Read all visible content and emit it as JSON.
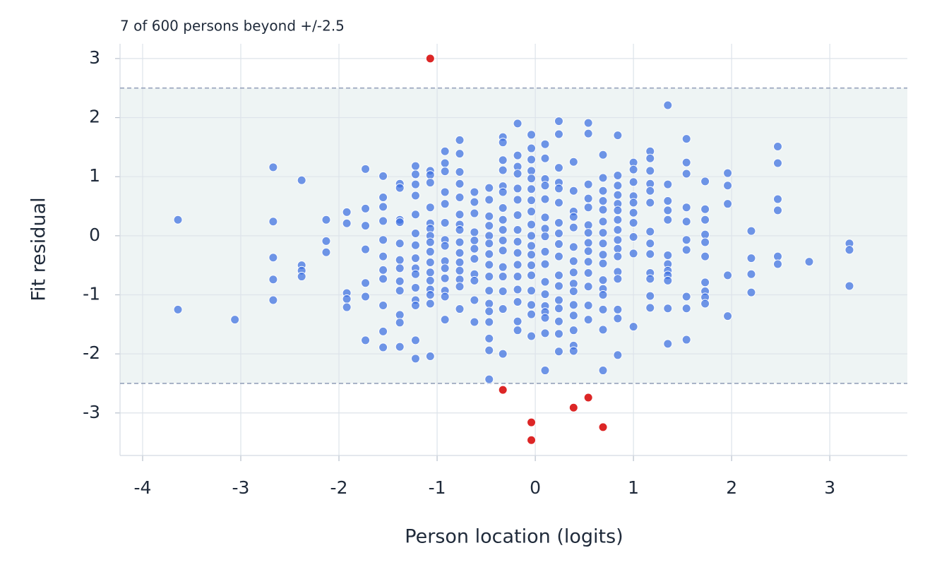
{
  "chart_data": {
    "type": "scatter",
    "annotation": "7 of 600 persons beyond +/-2.5",
    "x_label": "Person location (logits)",
    "y_label": "Fit residual",
    "xlim": [
      -4.23,
      3.79
    ],
    "ylim": [
      -3.72,
      3.25
    ],
    "xticks": [
      -4,
      -3,
      -2,
      -1,
      0,
      1,
      2,
      3
    ],
    "yticks": [
      -3,
      -2,
      -1,
      0,
      1,
      2,
      3
    ],
    "thresholds": [
      -2.5,
      2.5
    ],
    "grid": true,
    "series": [
      {
        "color": "#3b6fe0",
        "x": [
          -3.64,
          -3.64,
          -3.06,
          -2.67,
          -2.67,
          -2.67,
          -2.67,
          -2.67,
          -2.38,
          -2.38,
          -2.38,
          -2.38,
          -2.13,
          -2.13,
          -2.13,
          -1.92,
          -1.92,
          -1.92,
          -1.92,
          -1.92,
          -1.73,
          -1.73,
          -1.73,
          -1.73,
          -1.73,
          -1.73,
          -1.73,
          -1.55,
          -1.55,
          -1.55,
          -1.55,
          -1.55,
          -1.55,
          -1.55,
          -1.55,
          -1.55,
          -1.55,
          -1.55,
          -1.38,
          -1.38,
          -1.38,
          -1.38,
          -1.38,
          -1.38,
          -1.38,
          -1.38,
          -1.38,
          -1.38,
          -1.38,
          -1.38,
          -1.22,
          -1.22,
          -1.22,
          -1.22,
          -1.22,
          -1.22,
          -1.22,
          -1.22,
          -1.22,
          -1.22,
          -1.22,
          -1.22,
          -1.22,
          -1.22,
          -1.22,
          -1.07,
          -1.07,
          -1.07,
          -1.07,
          -1.07,
          -1.07,
          -1.07,
          -1.07,
          -1.07,
          -1.07,
          -1.07,
          -1.07,
          -1.07,
          -1.07,
          -1.07,
          -1.07,
          -0.92,
          -0.92,
          -0.92,
          -0.92,
          -0.92,
          -0.92,
          -0.92,
          -0.92,
          -0.92,
          -0.92,
          -0.92,
          -0.92,
          -0.92,
          -0.92,
          -0.77,
          -0.77,
          -0.77,
          -0.77,
          -0.77,
          -0.77,
          -0.77,
          -0.77,
          -0.77,
          -0.77,
          -0.77,
          -0.77,
          -0.77,
          -0.77,
          -0.77,
          -0.62,
          -0.62,
          -0.62,
          -0.62,
          -0.62,
          -0.62,
          -0.62,
          -0.62,
          -0.62,
          -0.62,
          -0.62,
          -0.47,
          -0.47,
          -0.47,
          -0.47,
          -0.47,
          -0.47,
          -0.47,
          -0.47,
          -0.47,
          -0.47,
          -0.47,
          -0.47,
          -0.47,
          -0.47,
          -0.47,
          -0.47,
          -0.33,
          -0.33,
          -0.33,
          -0.33,
          -0.33,
          -0.33,
          -0.33,
          -0.33,
          -0.33,
          -0.33,
          -0.33,
          -0.33,
          -0.33,
          -0.33,
          -0.33,
          -0.33,
          -0.18,
          -0.18,
          -0.18,
          -0.18,
          -0.18,
          -0.18,
          -0.18,
          -0.18,
          -0.18,
          -0.18,
          -0.18,
          -0.18,
          -0.18,
          -0.18,
          -0.18,
          -0.18,
          -0.04,
          -0.04,
          -0.04,
          -0.04,
          -0.04,
          -0.04,
          -0.04,
          -0.04,
          -0.04,
          -0.04,
          -0.04,
          -0.04,
          -0.04,
          -0.04,
          -0.04,
          -0.04,
          -0.04,
          -0.04,
          0.1,
          0.1,
          0.1,
          0.1,
          0.1,
          0.1,
          0.1,
          0.1,
          0.1,
          0.1,
          0.1,
          0.1,
          0.1,
          0.1,
          0.1,
          0.1,
          0.1,
          0.24,
          0.24,
          0.24,
          0.24,
          0.24,
          0.24,
          0.24,
          0.24,
          0.24,
          0.24,
          0.24,
          0.24,
          0.24,
          0.24,
          0.24,
          0.24,
          0.24,
          0.39,
          0.39,
          0.39,
          0.39,
          0.39,
          0.39,
          0.39,
          0.39,
          0.39,
          0.39,
          0.39,
          0.39,
          0.39,
          0.39,
          0.39,
          0.54,
          0.54,
          0.54,
          0.54,
          0.54,
          0.54,
          0.54,
          0.54,
          0.54,
          0.54,
          0.54,
          0.54,
          0.54,
          0.54,
          0.69,
          0.69,
          0.69,
          0.69,
          0.69,
          0.69,
          0.69,
          0.69,
          0.69,
          0.69,
          0.69,
          0.69,
          0.69,
          0.69,
          0.69,
          0.69,
          0.84,
          0.84,
          0.84,
          0.84,
          0.84,
          0.84,
          0.84,
          0.84,
          0.84,
          0.84,
          0.84,
          0.84,
          0.84,
          0.84,
          0.84,
          0.84,
          1,
          1,
          1,
          1,
          1,
          1,
          1,
          1,
          1,
          1,
          1.17,
          1.17,
          1.17,
          1.17,
          1.17,
          1.17,
          1.17,
          1.17,
          1.17,
          1.17,
          1.17,
          1.17,
          1.17,
          1.35,
          1.35,
          1.35,
          1.35,
          1.35,
          1.35,
          1.35,
          1.35,
          1.35,
          1.35,
          1.35,
          1.35,
          1.54,
          1.54,
          1.54,
          1.54,
          1.54,
          1.54,
          1.54,
          1.54,
          1.54,
          1.54,
          1.73,
          1.73,
          1.73,
          1.73,
          1.73,
          1.73,
          1.73,
          1.73,
          1.73,
          1.73,
          1.96,
          1.96,
          1.96,
          1.96,
          1.96,
          2.2,
          2.2,
          2.2,
          2.2,
          2.47,
          2.47,
          2.47,
          2.47,
          2.47,
          2.47,
          2.79,
          3.2,
          3.2,
          3.2
        ],
        "values": [
          0.27,
          -1.25,
          -1.42,
          1.16,
          0.24,
          -0.37,
          -0.74,
          -1.09,
          0.94,
          -0.5,
          -0.59,
          -0.69,
          0.27,
          -0.09,
          -0.28,
          0.4,
          0.21,
          -0.97,
          -1.07,
          -1.21,
          1.13,
          0.46,
          0.17,
          -0.23,
          -0.8,
          -1.03,
          -1.77,
          1.01,
          0.65,
          0.49,
          0.25,
          -0.07,
          -0.35,
          -0.58,
          -0.73,
          -1.18,
          -1.62,
          -1.89,
          0.88,
          0.81,
          0.27,
          0.23,
          -0.13,
          -0.41,
          -0.55,
          -0.77,
          -0.93,
          -1.34,
          -1.47,
          -1.88,
          1.18,
          1.04,
          0.87,
          0.68,
          0.36,
          0.04,
          -0.16,
          -0.38,
          -0.55,
          -0.65,
          -0.88,
          -1.09,
          -1.18,
          -1.77,
          -2.08,
          1.1,
          1.03,
          0.9,
          0.48,
          0.21,
          0.12,
          0,
          -0.11,
          -0.27,
          -0.45,
          -0.62,
          -0.76,
          -0.91,
          -1.0,
          -1.15,
          -2.04,
          1.43,
          1.23,
          1.09,
          0.74,
          0.54,
          0.22,
          -0.07,
          -0.17,
          -0.43,
          -0.55,
          -0.72,
          -0.93,
          -1.03,
          -1.42,
          1.62,
          1.39,
          1.08,
          0.88,
          0.65,
          0.36,
          0.19,
          0.1,
          -0.11,
          -0.29,
          -0.45,
          -0.59,
          -0.74,
          -0.86,
          -1.24,
          0.74,
          0.57,
          0.38,
          0.06,
          -0.08,
          -0.22,
          -0.39,
          -0.65,
          -0.76,
          -1.09,
          -1.46,
          0.81,
          0.61,
          0.33,
          0.17,
          0,
          -0.13,
          -0.31,
          -0.49,
          -0.69,
          -0.93,
          -1.15,
          -1.28,
          -1.46,
          -1.74,
          -1.94,
          -2.43,
          1.67,
          1.58,
          1.28,
          1.11,
          0.84,
          0.74,
          0.47,
          0.27,
          0.1,
          -0.08,
          -0.25,
          -0.53,
          -0.69,
          -0.94,
          -1.24,
          -2.0,
          1.9,
          1.36,
          1.17,
          1.05,
          0.8,
          0.61,
          0.35,
          0.1,
          -0.1,
          -0.29,
          -0.49,
          -0.69,
          -0.91,
          -1.12,
          -1.45,
          -1.6,
          1.71,
          1.48,
          1.29,
          1.1,
          0.97,
          0.79,
          0.6,
          0.41,
          0.19,
          0,
          -0.17,
          -0.32,
          -0.5,
          -0.67,
          -0.93,
          -1.17,
          -1.33,
          -1.7,
          1.55,
          1.31,
          0.96,
          0.85,
          0.62,
          0.31,
          0.12,
          -0.01,
          -0.27,
          -0.48,
          -0.78,
          -0.99,
          -1.19,
          -1.29,
          -1.39,
          -1.65,
          -2.28,
          1.94,
          1.72,
          1.15,
          0.9,
          0.8,
          0.56,
          0.22,
          0.04,
          -0.14,
          -0.35,
          -0.67,
          -0.85,
          -1.09,
          -1.23,
          -1.45,
          -1.66,
          -1.96,
          1.25,
          0.76,
          0.41,
          0.32,
          0.14,
          -0.19,
          -0.43,
          -0.62,
          -0.81,
          -0.94,
          -1.17,
          -1.35,
          -1.6,
          -1.86,
          -1.95,
          1.91,
          1.73,
          0.87,
          0.63,
          0.48,
          0.18,
          0.05,
          -0.12,
          -0.26,
          -0.44,
          -0.63,
          -0.86,
          -1.18,
          -1.42,
          1.37,
          0.98,
          0.76,
          0.59,
          0.44,
          0.24,
          0.05,
          -0.13,
          -0.32,
          -0.47,
          -0.75,
          -0.9,
          -1.0,
          -1.25,
          -1.59,
          -2.28,
          1.7,
          1.02,
          0.85,
          0.69,
          0.54,
          0.43,
          0.27,
          0.1,
          -0.07,
          -0.22,
          -0.35,
          -0.61,
          -0.73,
          -1.25,
          -1.4,
          -2.02,
          1.24,
          1.12,
          0.91,
          0.67,
          0.56,
          0.39,
          0.22,
          -0.02,
          -0.3,
          -1.54,
          1.43,
          1.31,
          1.1,
          0.88,
          0.76,
          0.56,
          0.07,
          -0.13,
          -0.31,
          -0.63,
          -0.73,
          -1.02,
          -1.22,
          2.21,
          0.87,
          0.59,
          0.43,
          0.27,
          -0.33,
          -0.48,
          -0.59,
          -0.67,
          -0.76,
          -1.23,
          -1.83,
          1.64,
          1.24,
          1.05,
          0.48,
          0.24,
          -0.07,
          -0.24,
          -1.03,
          -1.23,
          -1.76,
          0.92,
          0.45,
          0.27,
          0.02,
          -0.11,
          -0.35,
          -0.79,
          -0.94,
          -1.04,
          -1.15,
          1.06,
          0.85,
          0.54,
          -0.67,
          -1.36,
          0.08,
          -0.38,
          -0.65,
          -0.96,
          1.51,
          1.23,
          0.62,
          0.43,
          -0.35,
          -0.48,
          -0.44,
          -0.13,
          -0.24,
          -0.85
        ]
      },
      {
        "color": "#dc2626",
        "x": [
          -1.07,
          -0.33,
          -0.04,
          -0.04,
          0.39,
          0.54,
          0.69
        ],
        "values": [
          3.0,
          -2.61,
          -3.16,
          -3.46,
          -2.91,
          -2.74,
          -3.24
        ]
      }
    ]
  }
}
